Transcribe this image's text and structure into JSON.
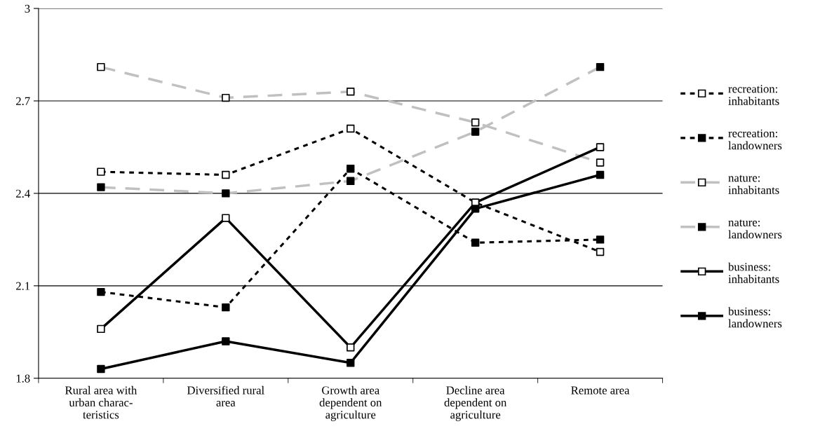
{
  "chart_data": {
    "type": "line",
    "categories": [
      "Rural area with\nurban charac-\nteristics",
      "Diversified rural\narea",
      "Growth area\ndependent on\nagriculture",
      "Decline area\ndependent on\nagriculture",
      "Remote area"
    ],
    "series": [
      {
        "name": "recreation:\ninhabitants",
        "color": "#000000",
        "line_style": "dotted",
        "colors": [
          "#ffffff",
          "#ffffff",
          "#ffffff",
          "#ffffff",
          "#ffffff"
        ],
        "values": [
          2.47,
          2.46,
          2.61,
          2.37,
          2.21
        ]
      },
      {
        "name": "recreation:\nlandowners",
        "color": "#000000",
        "line_style": "dotted",
        "colors": [
          "#000000",
          "#000000",
          "#000000",
          "#000000",
          "#000000"
        ],
        "values": [
          2.08,
          2.03,
          2.48,
          2.24,
          2.25
        ]
      },
      {
        "name": "nature:\ninhabitants",
        "color": "#c0c0c0",
        "line_style": "dashed",
        "colors": [
          "#ffffff",
          "#ffffff",
          "#ffffff",
          "#ffffff",
          "#ffffff"
        ],
        "values": [
          2.81,
          2.71,
          2.73,
          2.63,
          2.5
        ]
      },
      {
        "name": "nature:\nlandowners",
        "color": "#c0c0c0",
        "line_style": "dashed",
        "colors": [
          "#000000",
          "#000000",
          "#000000",
          "#000000",
          "#000000"
        ],
        "values": [
          2.42,
          2.4,
          2.44,
          2.6,
          2.81
        ]
      },
      {
        "name": "business:\ninhabitants",
        "color": "#000000",
        "line_style": "solid",
        "colors": [
          "#ffffff",
          "#ffffff",
          "#ffffff",
          "#ffffff",
          "#ffffff"
        ],
        "values": [
          1.96,
          2.32,
          1.9,
          2.37,
          2.55
        ]
      },
      {
        "name": "business:\nlandowners",
        "color": "#000000",
        "line_style": "solid",
        "colors": [
          "#000000",
          "#000000",
          "#000000",
          "#000000",
          "#000000"
        ],
        "values": [
          1.83,
          1.92,
          1.85,
          2.35,
          2.46
        ]
      }
    ],
    "ylim": [
      1.8,
      3
    ],
    "yticks": [
      1.8,
      2.1,
      2.4,
      2.7,
      3
    ],
    "grid": "y",
    "legend": "right",
    "marker": "square"
  }
}
